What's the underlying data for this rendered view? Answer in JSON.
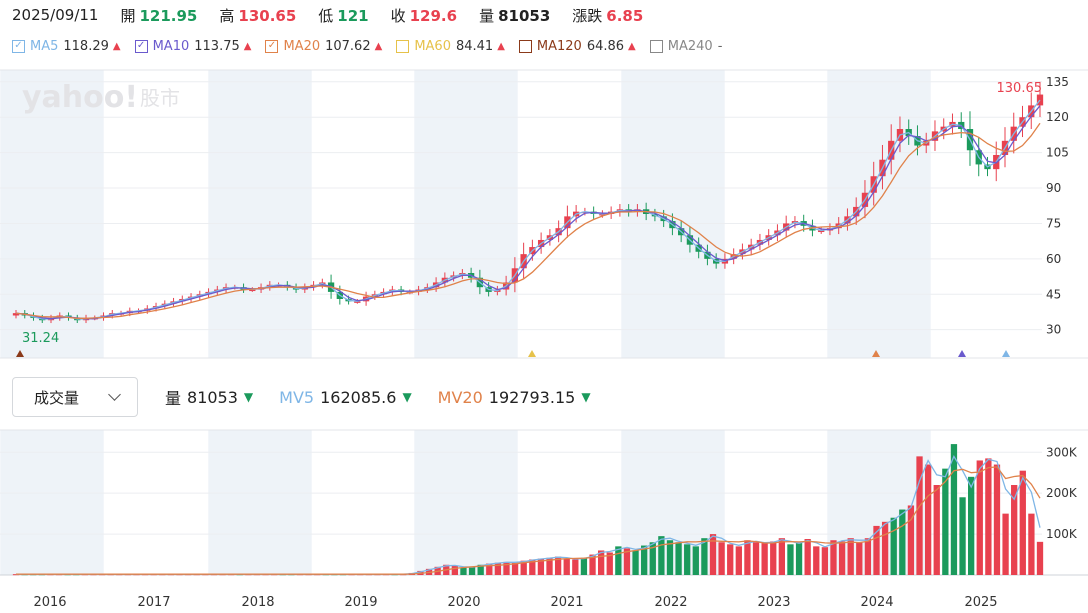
{
  "info": {
    "date": "2025/09/11",
    "open_label": "開",
    "open": "121.95",
    "high_label": "高",
    "high": "130.65",
    "low_label": "低",
    "low": "121",
    "close_label": "收",
    "close": "129.6",
    "volume_label": "量",
    "volume": "81053",
    "change_label": "漲跌",
    "change": "6.85"
  },
  "ma_legend": [
    {
      "name": "MA5",
      "value": "118.29",
      "color": "#7fb6e6",
      "checked": true,
      "trend": "up"
    },
    {
      "name": "MA10",
      "value": "113.75",
      "color": "#6a5acd",
      "checked": true,
      "trend": "up"
    },
    {
      "name": "MA20",
      "value": "107.62",
      "color": "#e0824a",
      "checked": true,
      "trend": "up"
    },
    {
      "name": "MA60",
      "value": "84.41",
      "color": "#e6c24a",
      "checked": false,
      "trend": "up"
    },
    {
      "name": "MA120",
      "value": "64.86",
      "color": "#8b3a1a",
      "checked": false,
      "trend": "up"
    },
    {
      "name": "MA240",
      "value": "-",
      "color": "#888888",
      "checked": false,
      "trend": "none"
    }
  ],
  "logo": {
    "text": "yahoo!",
    "suffix": "股市"
  },
  "price_labels": {
    "max": "130.65",
    "min": "31.24"
  },
  "volume_header": {
    "dropdown": "成交量",
    "items": [
      {
        "name": "量",
        "value": "81053",
        "color": "#222222",
        "trend": "down"
      },
      {
        "name": "MV5",
        "value": "162085.6",
        "color": "#7fb6e6",
        "trend": "down"
      },
      {
        "name": "MV20",
        "value": "192793.15",
        "color": "#e0824a",
        "trend": "down"
      }
    ]
  },
  "colors": {
    "up": "#e8414f",
    "down": "#1b9a5c",
    "ma5": "#7fb6e6",
    "ma10": "#6a5acd",
    "ma20": "#e0824a",
    "band": "#eef3f8"
  },
  "chart_data": {
    "type": "candlestick",
    "x_labels": [
      "2016",
      "2017",
      "2018",
      "2019",
      "2020",
      "2021",
      "2022",
      "2023",
      "2024",
      "2025"
    ],
    "price_ticks": [
      "30",
      "45",
      "60",
      "75",
      "90",
      "105",
      "120",
      "135"
    ],
    "volume_ticks": [
      "100K",
      "200K",
      "300K"
    ],
    "price_range": [
      18,
      140
    ],
    "volume_range": [
      0,
      330000
    ],
    "candles_monthly_close": [
      37,
      36,
      35,
      34,
      35,
      36,
      35,
      34,
      35,
      35,
      36,
      37,
      37,
      38,
      38,
      39,
      40,
      41,
      42,
      43,
      44,
      45,
      46,
      47,
      48,
      48,
      47,
      47,
      48,
      49,
      49,
      48,
      47,
      48,
      49,
      50,
      46,
      43,
      42,
      42,
      44,
      45,
      46,
      47,
      46,
      46,
      47,
      48,
      50,
      52,
      53,
      54,
      52,
      48,
      46,
      47,
      50,
      56,
      62,
      65,
      68,
      70,
      73,
      78,
      80,
      80,
      79,
      79,
      80,
      81,
      80,
      81,
      79,
      78,
      76,
      73,
      70,
      66,
      63,
      60,
      58,
      60,
      62,
      64,
      66,
      68,
      70,
      72,
      75,
      76,
      74,
      72,
      72,
      73,
      75,
      78,
      82,
      88,
      95,
      102,
      110,
      115,
      112,
      108,
      110,
      114,
      116,
      118,
      115,
      106,
      100,
      98,
      104,
      110,
      116,
      120,
      125,
      129.6
    ],
    "ma20_sample": [
      38,
      37,
      36,
      35,
      36,
      37,
      38,
      39,
      40,
      42,
      44,
      46,
      47,
      48,
      48,
      48,
      47,
      47,
      47,
      48,
      50,
      54,
      58,
      62,
      65,
      68,
      71,
      74,
      76,
      76,
      74,
      71,
      68,
      66,
      66,
      67,
      69,
      71,
      72,
      71,
      70,
      71,
      76,
      84,
      94,
      100,
      104,
      107,
      107.62
    ],
    "volume_monthly": [
      2000,
      2000,
      2000,
      2000,
      2000,
      2000,
      2000,
      2000,
      2000,
      2000,
      2000,
      2000,
      2000,
      2000,
      2000,
      2000,
      2000,
      2000,
      2000,
      2000,
      2000,
      2000,
      2000,
      2000,
      2000,
      2000,
      2000,
      2000,
      2000,
      2000,
      2000,
      2000,
      2000,
      2000,
      2000,
      2000,
      2000,
      2000,
      2000,
      2000,
      2000,
      2000,
      2000,
      2000,
      2000,
      2000,
      5000,
      10000,
      15000,
      20000,
      25000,
      22000,
      18000,
      20000,
      25000,
      28000,
      30000,
      32000,
      30000,
      35000,
      38000,
      40000,
      42000,
      45000,
      40000,
      38000,
      42000,
      50000,
      60000,
      55000,
      70000,
      65000,
      60000,
      72000,
      80000,
      95000,
      85000,
      80000,
      75000,
      70000,
      90000,
      100000,
      80000,
      75000,
      70000,
      85000,
      80000,
      78000,
      82000,
      90000,
      75000,
      80000,
      88000,
      70000,
      68000,
      85000,
      82000,
      90000,
      80000,
      90000,
      120000,
      130000,
      140000,
      160000,
      170000,
      290000,
      270000,
      220000,
      260000,
      320000,
      190000,
      240000,
      280000,
      285000,
      270000,
      150000,
      220000,
      255000,
      150000,
      81053
    ]
  }
}
